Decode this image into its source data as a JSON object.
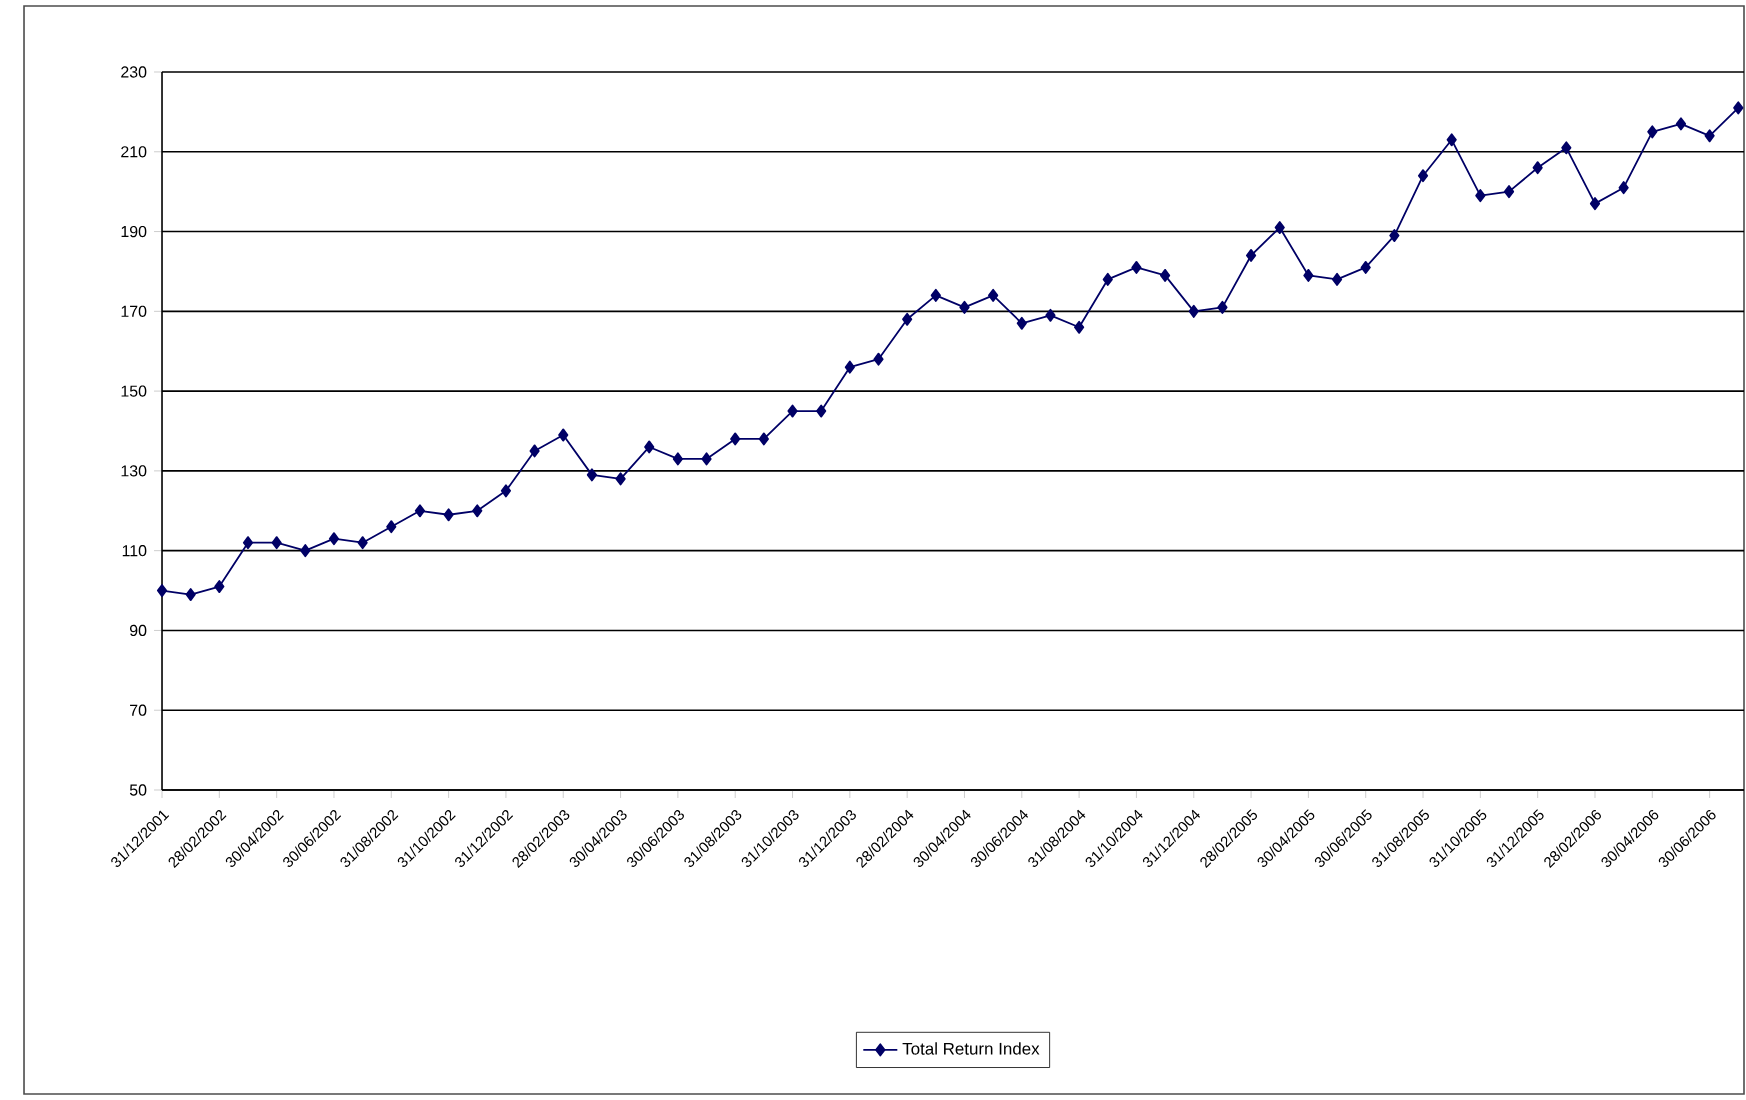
{
  "chart_data": {
    "type": "line",
    "categories": [
      "31/12/2001",
      null,
      "28/02/2002",
      null,
      "30/04/2002",
      null,
      "30/06/2002",
      null,
      "31/08/2002",
      null,
      "31/10/2002",
      null,
      "31/12/2002",
      null,
      "28/02/2003",
      null,
      "30/04/2003",
      null,
      "30/06/2003",
      null,
      "31/08/2003",
      null,
      "31/10/2003",
      null,
      "31/12/2003",
      null,
      "28/02/2004",
      null,
      "30/04/2004",
      null,
      "30/06/2004",
      null,
      "31/08/2004",
      null,
      "31/10/2004",
      null,
      "31/12/2004",
      null,
      "28/02/2005",
      null,
      "30/04/2005",
      null,
      "30/06/2005",
      null,
      "31/08/2005",
      null,
      "31/10/2005",
      null,
      "31/12/2005",
      null,
      "28/02/2006",
      null,
      "30/04/2006",
      null,
      "30/06/2006",
      null
    ],
    "series": [
      {
        "name": "Total Return Index",
        "color": "#000066",
        "values": [
          100,
          99,
          101,
          112,
          112,
          110,
          113,
          112,
          116,
          120,
          119,
          120,
          125,
          135,
          139,
          129,
          128,
          136,
          133,
          133,
          138,
          138,
          145,
          145,
          156,
          158,
          168,
          174,
          171,
          174,
          167,
          169,
          166,
          178,
          181,
          179,
          170,
          171,
          184,
          191,
          179,
          178,
          181,
          189,
          204,
          213,
          199,
          200,
          206,
          211,
          197,
          201,
          215,
          217,
          214,
          221
        ]
      }
    ],
    "ylim": [
      50,
      230
    ],
    "yticks": [
      50,
      70,
      90,
      110,
      130,
      150,
      170,
      190,
      210,
      230
    ],
    "grid": "y",
    "legend": "bottom",
    "marker": "diamond",
    "line_style": "solid"
  }
}
